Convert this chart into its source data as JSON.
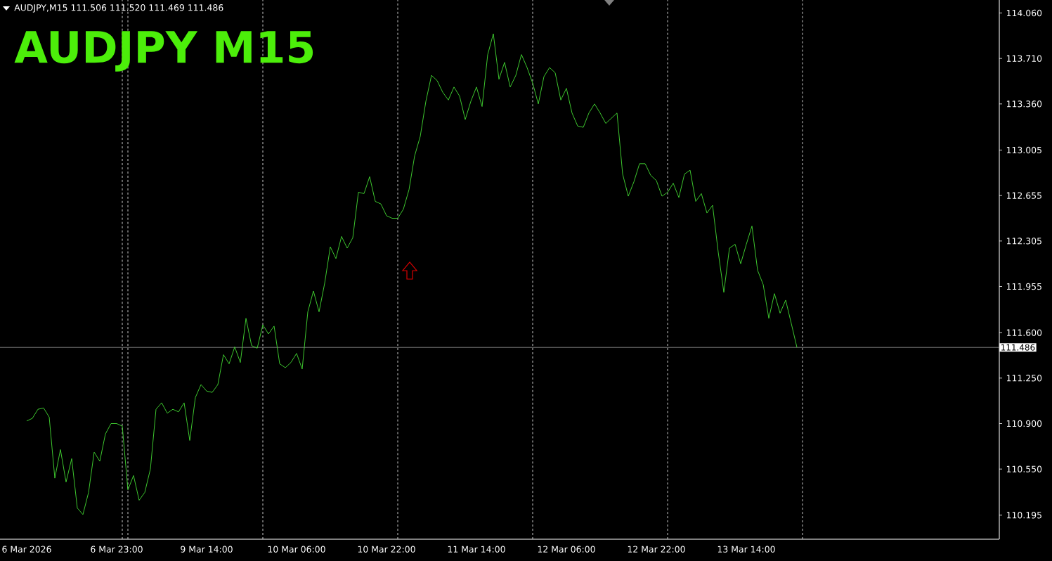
{
  "chart_data": {
    "type": "line",
    "title": "AUDJPY  M15",
    "subtitle": "AUDJPY,M15  111.506 111.520 111.469 111.486",
    "categories": [
      "6 Mar 2026",
      null,
      null,
      null,
      null,
      null,
      null,
      null,
      null,
      null,
      null,
      null,
      null,
      null,
      null,
      null,
      "6 Mar 23:00",
      null,
      null,
      null,
      null,
      null,
      null,
      null,
      null,
      null,
      null,
      null,
      null,
      null,
      null,
      null,
      "9 Mar 14:00",
      null,
      null,
      null,
      null,
      null,
      null,
      null,
      null,
      null,
      null,
      null,
      null,
      null,
      null,
      null,
      "10 Mar 06:00",
      null,
      null,
      null,
      null,
      null,
      null,
      null,
      null,
      null,
      null,
      null,
      null,
      null,
      null,
      null,
      "10 Mar 22:00",
      null,
      null,
      null,
      null,
      null,
      null,
      null,
      null,
      null,
      null,
      null,
      null,
      null,
      null,
      null,
      "11 Mar 14:00",
      null,
      null,
      null,
      null,
      null,
      null,
      null,
      null,
      null,
      null,
      null,
      null,
      null,
      null,
      null,
      "12 Mar 06:00",
      null,
      null,
      null,
      null,
      null,
      null,
      null,
      null,
      null,
      null,
      null,
      null,
      null,
      null,
      null,
      "12 Mar 22:00",
      null,
      null,
      null,
      null,
      null,
      null,
      null,
      null,
      null,
      null,
      null,
      null,
      null,
      null,
      null,
      "13 Mar 14:00",
      null,
      null,
      null,
      null,
      null,
      null,
      null,
      null,
      null
    ],
    "series": [
      {
        "color": "#44dd33",
        "values": [
          110.92,
          110.94,
          111.01,
          111.02,
          110.95,
          110.48,
          110.7,
          110.45,
          110.63,
          110.25,
          110.2,
          110.37,
          110.68,
          110.61,
          110.82,
          110.9,
          110.9,
          110.88,
          110.39,
          110.5,
          110.31,
          110.37,
          110.55,
          111.01,
          111.06,
          110.98,
          111.01,
          110.99,
          111.06,
          110.77,
          111.1,
          111.2,
          111.15,
          111.14,
          111.2,
          111.43,
          111.36,
          111.49,
          111.37,
          111.71,
          111.5,
          111.48,
          111.66,
          111.59,
          111.65,
          111.36,
          111.33,
          111.37,
          111.44,
          111.32,
          111.76,
          111.92,
          111.76,
          111.98,
          112.26,
          112.17,
          112.34,
          112.25,
          112.33,
          112.68,
          112.67,
          112.8,
          112.61,
          112.59,
          112.5,
          112.48,
          112.48,
          112.55,
          112.7,
          112.96,
          113.11,
          113.38,
          113.58,
          113.54,
          113.45,
          113.39,
          113.49,
          113.42,
          113.24,
          113.38,
          113.49,
          113.34,
          113.74,
          113.9,
          113.55,
          113.68,
          113.49,
          113.58,
          113.74,
          113.64,
          113.52,
          113.36,
          113.57,
          113.64,
          113.6,
          113.39,
          113.48,
          113.29,
          113.19,
          113.18,
          113.29,
          113.36,
          113.29,
          113.21,
          113.25,
          113.29,
          112.82,
          112.65,
          112.76,
          112.9,
          112.9,
          112.81,
          112.77,
          112.65,
          112.68,
          112.75,
          112.64,
          112.82,
          112.85,
          112.61,
          112.67,
          112.52,
          112.58,
          112.22,
          111.91,
          112.25,
          112.28,
          112.13,
          112.28,
          112.42,
          112.08,
          111.97,
          111.71,
          111.9,
          111.75,
          111.85,
          111.67,
          111.486
        ]
      }
    ],
    "ylim": [
      110.01,
      114.16
    ],
    "yticks": [
      {
        "value": 110.195,
        "label": "110.195"
      },
      {
        "value": 110.55,
        "label": "110.550"
      },
      {
        "value": 110.9,
        "label": "110.900"
      },
      {
        "value": 111.25,
        "label": "111.250"
      },
      {
        "value": 111.6,
        "label": "111.600"
      },
      {
        "value": 111.955,
        "label": "111.955"
      },
      {
        "value": 112.305,
        "label": "112.305"
      },
      {
        "value": 112.655,
        "label": "112.655"
      },
      {
        "value": 113.005,
        "label": "113.005"
      },
      {
        "value": 113.36,
        "label": "113.360"
      },
      {
        "value": 113.71,
        "label": "113.710"
      },
      {
        "value": 114.06,
        "label": "114.060"
      }
    ],
    "ref_lines": [
      {
        "axis": "y",
        "value": 111.486,
        "label": "111.486",
        "color": "#a0a0a0",
        "line_style": "solid"
      }
    ],
    "marker": "none",
    "line_style": "solid"
  }
}
